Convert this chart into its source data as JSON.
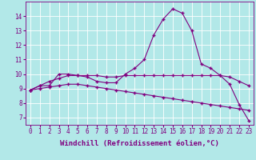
{
  "xlabel": "Windchill (Refroidissement éolien,°C)",
  "background_color": "#b2e8e8",
  "grid_color": "#ffffff",
  "line_color": "#800080",
  "x_values": [
    0,
    1,
    2,
    3,
    4,
    5,
    6,
    7,
    8,
    9,
    10,
    11,
    12,
    13,
    14,
    15,
    16,
    17,
    18,
    19,
    20,
    21,
    22,
    23
  ],
  "line1": [
    8.9,
    9.2,
    9.2,
    10.0,
    10.0,
    9.9,
    9.8,
    9.5,
    9.4,
    9.4,
    10.0,
    10.4,
    11.0,
    12.7,
    13.8,
    14.5,
    14.2,
    13.0,
    10.7,
    10.4,
    9.9,
    9.3,
    7.9,
    6.8
  ],
  "line2": [
    8.9,
    9.2,
    9.5,
    9.7,
    9.9,
    9.9,
    9.9,
    9.9,
    9.8,
    9.8,
    9.9,
    9.9,
    9.9,
    9.9,
    9.9,
    9.9,
    9.9,
    9.9,
    9.9,
    9.9,
    9.9,
    9.8,
    9.5,
    9.2
  ],
  "line3": [
    8.9,
    9.0,
    9.1,
    9.2,
    9.3,
    9.3,
    9.2,
    9.1,
    9.0,
    8.9,
    8.8,
    8.7,
    8.6,
    8.5,
    8.4,
    8.3,
    8.2,
    8.1,
    8.0,
    7.9,
    7.8,
    7.7,
    7.6,
    7.5
  ],
  "xlim": [
    -0.5,
    23.5
  ],
  "ylim": [
    6.5,
    15.0
  ],
  "yticks": [
    7,
    8,
    9,
    10,
    11,
    12,
    13,
    14
  ],
  "xticks": [
    0,
    1,
    2,
    3,
    4,
    5,
    6,
    7,
    8,
    9,
    10,
    11,
    12,
    13,
    14,
    15,
    16,
    17,
    18,
    19,
    20,
    21,
    22,
    23
  ],
  "tick_label_size": 5.5,
  "xlabel_size": 6.5,
  "marker": "+",
  "linewidth": 0.8,
  "markersize": 3
}
